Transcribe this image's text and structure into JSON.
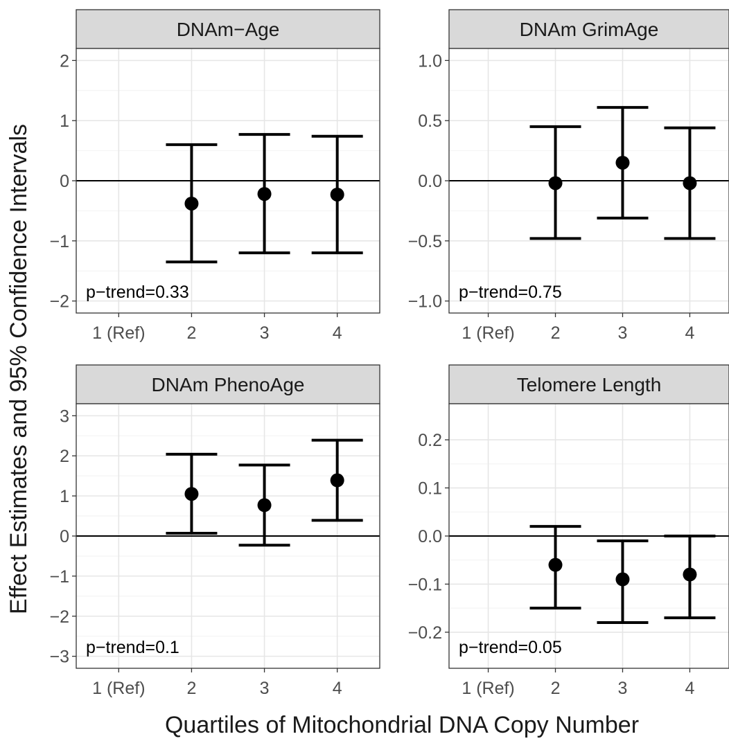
{
  "figure": {
    "ylabel": "Effect Estimates and 95% Confidence Intervals",
    "xlabel": "Quartiles of Mitochondrial DNA Copy Number"
  },
  "chart_data": [
    {
      "type": "scatter",
      "title": "DNAm−Age",
      "categories": [
        "1 (Ref)",
        "2",
        "3",
        "4"
      ],
      "yticks": [
        "−2",
        "−1",
        "0",
        "1",
        "2"
      ],
      "ytick_values": [
        -2,
        -1,
        0,
        1,
        2
      ],
      "ylim": [
        -2.2,
        2.2
      ],
      "reference_line": 0,
      "annotation": "p−trend=0.33",
      "series": [
        {
          "points": [
            {
              "category": "2",
              "estimate": -0.38,
              "lower": -1.35,
              "upper": 0.6
            },
            {
              "category": "3",
              "estimate": -0.22,
              "lower": -1.2,
              "upper": 0.77
            },
            {
              "category": "4",
              "estimate": -0.23,
              "lower": -1.2,
              "upper": 0.74
            }
          ]
        }
      ]
    },
    {
      "type": "scatter",
      "title": "DNAm GrimAge",
      "categories": [
        "1 (Ref)",
        "2",
        "3",
        "4"
      ],
      "yticks": [
        "−1.0",
        "−0.5",
        "0.0",
        "0.5",
        "1.0"
      ],
      "ytick_values": [
        -1.0,
        -0.5,
        0.0,
        0.5,
        1.0
      ],
      "ylim": [
        -1.1,
        1.1
      ],
      "reference_line": 0,
      "annotation": "p−trend=0.75",
      "series": [
        {
          "points": [
            {
              "category": "2",
              "estimate": -0.02,
              "lower": -0.48,
              "upper": 0.45
            },
            {
              "category": "3",
              "estimate": 0.15,
              "lower": -0.31,
              "upper": 0.61
            },
            {
              "category": "4",
              "estimate": -0.02,
              "lower": -0.48,
              "upper": 0.44
            }
          ]
        }
      ]
    },
    {
      "type": "scatter",
      "title": "DNAm PhenoAge",
      "categories": [
        "1 (Ref)",
        "2",
        "3",
        "4"
      ],
      "yticks": [
        "−3",
        "−2",
        "−1",
        "0",
        "1",
        "2",
        "3"
      ],
      "ytick_values": [
        -3,
        -2,
        -1,
        0,
        1,
        2,
        3
      ],
      "ylim": [
        -3.3,
        3.3
      ],
      "reference_line": 0,
      "annotation": "p−trend=0.1",
      "series": [
        {
          "points": [
            {
              "category": "2",
              "estimate": 1.05,
              "lower": 0.07,
              "upper": 2.04
            },
            {
              "category": "3",
              "estimate": 0.77,
              "lower": -0.23,
              "upper": 1.77
            },
            {
              "category": "4",
              "estimate": 1.39,
              "lower": 0.39,
              "upper": 2.39
            }
          ]
        }
      ]
    },
    {
      "type": "scatter",
      "title": "Telomere Length",
      "categories": [
        "1 (Ref)",
        "2",
        "3",
        "4"
      ],
      "yticks": [
        "−0.2",
        "−0.1",
        "0.0",
        "0.1",
        "0.2"
      ],
      "ytick_values": [
        -0.2,
        -0.1,
        0.0,
        0.1,
        0.2
      ],
      "ylim": [
        -0.275,
        0.275
      ],
      "reference_line": 0,
      "annotation": "p−trend=0.05",
      "series": [
        {
          "points": [
            {
              "category": "2",
              "estimate": -0.06,
              "lower": -0.15,
              "upper": 0.02
            },
            {
              "category": "3",
              "estimate": -0.09,
              "lower": -0.18,
              "upper": -0.01
            },
            {
              "category": "4",
              "estimate": -0.08,
              "lower": -0.17,
              "upper": 0.0
            }
          ]
        }
      ]
    }
  ]
}
